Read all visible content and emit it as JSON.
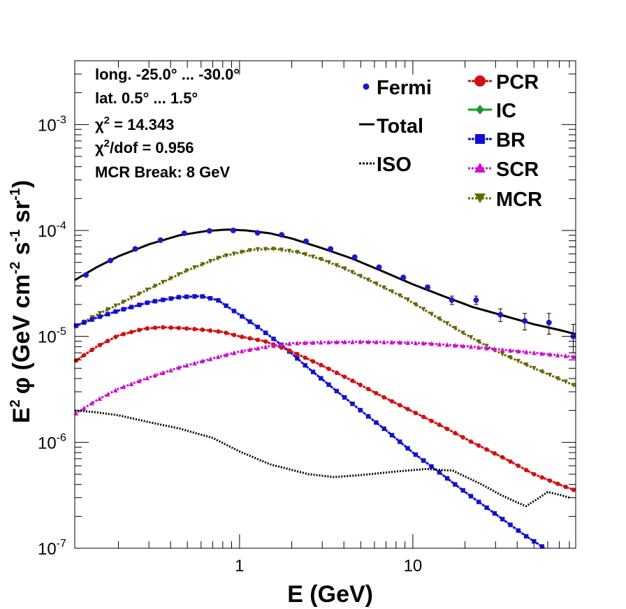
{
  "chart_data": {
    "type": "line",
    "xlabel": "E (GeV)",
    "ylabel_parts": {
      "main": "E",
      "sup1": "2",
      "phi": "φ (GeV cm",
      "sup2": "-2",
      "mid": " s",
      "sup3": "-1",
      "mid2": " sr",
      "sup4": "-1",
      "close": ")"
    },
    "xscale": "log",
    "yscale": "log",
    "xlim": [
      0.112,
      87
    ],
    "ylim": [
      1e-07,
      0.004
    ],
    "x_tick_labels": [
      {
        "value": 1,
        "label": "1"
      },
      {
        "value": 10,
        "label": "10"
      }
    ],
    "y_tick_labels": [
      {
        "value": 1e-07,
        "base": "10",
        "exp": "-7"
      },
      {
        "value": 1e-06,
        "base": "10",
        "exp": "-6"
      },
      {
        "value": 1e-05,
        "base": "10",
        "exp": "-5"
      },
      {
        "value": 0.0001,
        "base": "10",
        "exp": "-4"
      },
      {
        "value": 0.001,
        "base": "10",
        "exp": "-3"
      }
    ],
    "info_lines": [
      {
        "text": "long. -25.0° ... -30.0°"
      },
      {
        "text": "lat. 0.5° ... 1.5°"
      },
      {
        "prefix": "χ",
        "sup": "2",
        "text": " = 14.343"
      },
      {
        "prefix": "χ",
        "sup": "2",
        "text": "/dof = 0.956"
      },
      {
        "text": "MCR Break:  8 GeV"
      }
    ],
    "legend_left": [
      {
        "name": "Fermi",
        "style": "point",
        "color": "#1a1acc"
      },
      {
        "name": "Total",
        "style": "solid",
        "color": "#000000"
      },
      {
        "name": "ISO",
        "style": "dotted",
        "color": "#000000"
      }
    ],
    "legend_right": [
      {
        "name": "PCR",
        "marker": "circle",
        "color": "#d01010"
      },
      {
        "name": "IC",
        "marker": "diamond",
        "color": "#10a020"
      },
      {
        "name": "BR",
        "marker": "square",
        "color": "#1010d0"
      },
      {
        "name": "SCR",
        "marker": "triangle-up",
        "color": "#cc10cc"
      },
      {
        "name": "MCR",
        "marker": "triangle-down",
        "color": "#666600"
      }
    ],
    "fermi": {
      "x": [
        0.13,
        0.18,
        0.25,
        0.35,
        0.48,
        0.67,
        0.92,
        1.27,
        1.75,
        2.42,
        3.35,
        4.62,
        6.38,
        8.81,
        12.16,
        16.79,
        23.18,
        32.0,
        44.2,
        61.0,
        84.2
      ],
      "y": [
        3.8e-05,
        5.2e-05,
        6.7e-05,
        8.1e-05,
        9.4e-05,
        9.9e-05,
        0.0001,
        9.5e-05,
        9.1e-05,
        7.9e-05,
        6.7e-05,
        5.6e-05,
        4.5e-05,
        3.6e-05,
        2.9e-05,
        2.2e-05,
        2.2e-05,
        1.6e-05,
        1.4e-05,
        1.35e-05,
        1e-05
      ],
      "err": [
        0,
        0,
        0,
        0,
        0,
        0,
        0,
        0,
        0,
        0,
        0,
        0,
        0,
        0,
        1.5e-06,
        2e-06,
        2e-06,
        2.2e-06,
        2.5e-06,
        3e-06,
        3e-06
      ]
    },
    "series": [
      {
        "name": "Total",
        "color": "#000000",
        "dash": "none",
        "marker": "none",
        "x": [
          0.112,
          0.15,
          0.2,
          0.3,
          0.45,
          0.65,
          0.85,
          1.1,
          1.5,
          2.0,
          3.0,
          4.5,
          6.5,
          10,
          15,
          22,
          32,
          50,
          70,
          87
        ],
        "y": [
          3.4e-05,
          4.5e-05,
          5.7e-05,
          7.4e-05,
          9e-05,
          9.9e-05,
          0.000102,
          0.0001,
          9.4e-05,
          8.4e-05,
          6.8e-05,
          5.4e-05,
          4.2e-05,
          3.1e-05,
          2.4e-05,
          1.9e-05,
          1.6e-05,
          1.3e-05,
          1.15e-05,
          1.05e-05
        ]
      },
      {
        "name": "MCR",
        "color": "#666600",
        "dash": "3,2",
        "marker": "triangle-down",
        "x": [
          0.112,
          0.15,
          0.2,
          0.3,
          0.5,
          0.8,
          1.2,
          1.6,
          2.2,
          3.0,
          4.0,
          6.0,
          9.0,
          13,
          20,
          30,
          50,
          87
        ],
        "y": [
          1.22e-05,
          1.6e-05,
          2e-05,
          2.8e-05,
          4.2e-05,
          5.7e-05,
          6.6e-05,
          6.7e-05,
          6.2e-05,
          5.3e-05,
          4.4e-05,
          3.2e-05,
          2.3e-05,
          1.6e-05,
          1.05e-05,
          7.3e-06,
          5e-06,
          3.4e-06
        ]
      },
      {
        "name": "BR",
        "color": "#1010d0",
        "dash": "4,1",
        "marker": "square",
        "x": [
          0.112,
          0.15,
          0.2,
          0.3,
          0.45,
          0.6,
          0.75,
          1.0,
          1.3,
          1.8,
          2.5,
          3.5,
          5.0,
          7.0,
          10,
          14,
          20,
          30,
          45,
          65,
          75
        ],
        "y": [
          1.25e-05,
          1.5e-05,
          1.75e-05,
          2.1e-05,
          2.35e-05,
          2.4e-05,
          2.2e-05,
          1.6e-05,
          1.2e-05,
          8e-06,
          5e-06,
          3.2e-06,
          2e-06,
          1.3e-06,
          8e-07,
          5.3e-07,
          3.4e-07,
          2.1e-07,
          1.3e-07,
          8.8e-08,
          7.5e-08
        ]
      },
      {
        "name": "PCR",
        "color": "#d01010",
        "dash": "4,1",
        "marker": "circle",
        "x": [
          0.112,
          0.15,
          0.2,
          0.28,
          0.35,
          0.45,
          0.6,
          0.8,
          1.0,
          1.4,
          2.0,
          3.0,
          4.5,
          7.0,
          10,
          15,
          22,
          33,
          50,
          70,
          87
        ],
        "y": [
          5.8e-06,
          8e-06,
          1.02e-05,
          1.18e-05,
          1.22e-05,
          1.2e-05,
          1.16e-05,
          1.1e-05,
          1e-05,
          9e-06,
          7.2e-06,
          5.3e-06,
          3.8e-06,
          2.6e-06,
          1.95e-06,
          1.4e-06,
          1e-06,
          7.2e-07,
          5e-07,
          4e-07,
          3.5e-07
        ]
      },
      {
        "name": "SCR",
        "color": "#cc10cc",
        "dash": "3,2",
        "marker": "triangle-up",
        "x": [
          0.112,
          0.15,
          0.2,
          0.3,
          0.45,
          0.7,
          1.0,
          1.5,
          2.0,
          3.0,
          5.0,
          8.0,
          12,
          20,
          30,
          50,
          87
        ],
        "y": [
          1.85e-06,
          2.5e-06,
          3.2e-06,
          4.1e-06,
          5.1e-06,
          6.2e-06,
          7.2e-06,
          8.1e-06,
          8.6e-06,
          8.8e-06,
          8.9e-06,
          8.8e-06,
          8.6e-06,
          8.1e-06,
          7.6e-06,
          7e-06,
          6.4e-06
        ]
      },
      {
        "name": "ISO",
        "color": "#000000",
        "dash": "2,2",
        "marker": "none",
        "x": [
          0.112,
          0.15,
          0.2,
          0.3,
          0.45,
          0.7,
          1.0,
          1.5,
          2.5,
          3.5,
          5.0,
          8.0,
          12,
          17,
          25,
          32,
          40,
          45,
          52,
          60,
          70,
          80
        ],
        "y": [
          2e-06,
          1.92e-06,
          1.8e-06,
          1.55e-06,
          1.35e-06,
          1.1e-06,
          8.2e-07,
          6.2e-07,
          5e-07,
          4.7e-07,
          4.9e-07,
          5.3e-07,
          5.6e-07,
          5.4e-07,
          4e-07,
          3.2e-07,
          2.7e-07,
          2.5e-07,
          2.9e-07,
          3.4e-07,
          3.2e-07,
          3e-07
        ]
      }
    ]
  }
}
